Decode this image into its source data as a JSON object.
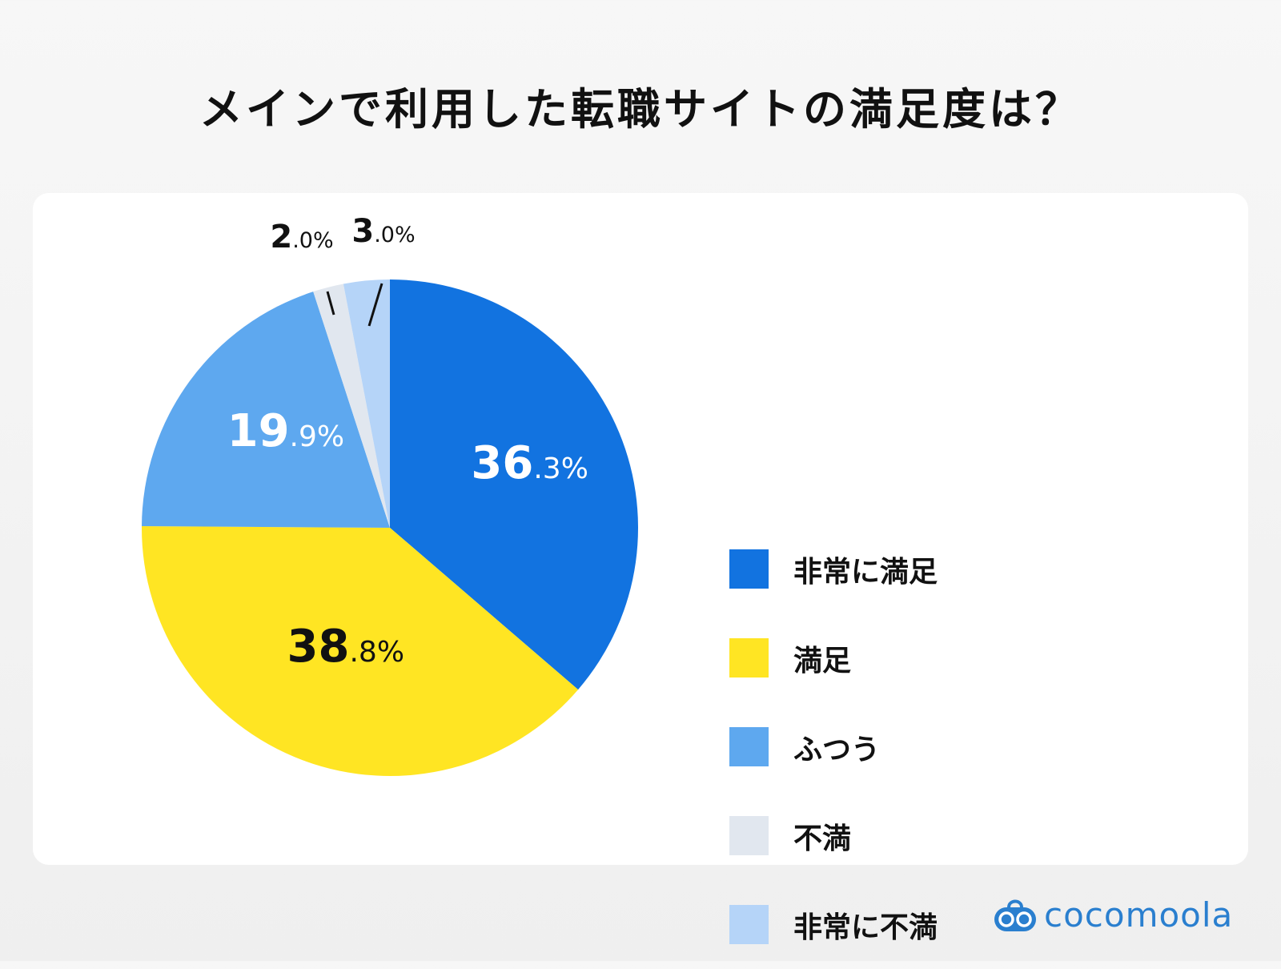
{
  "title": "メインで利用した転職サイトの満足度は？",
  "chart_data": {
    "type": "pie",
    "title": "メインで利用した転職サイトの満足度は？",
    "start_angle": "top",
    "direction": "clockwise",
    "legend_position": "right",
    "slices": [
      {
        "label": "非常に満足",
        "value": 36.3,
        "display_int": "36",
        "display_dec": ".3%",
        "color": "#1273e0",
        "text_color": "#ffffff"
      },
      {
        "label": "満足",
        "value": 38.8,
        "display_int": "38",
        "display_dec": ".8%",
        "color": "#ffe523",
        "text_color": "#111111"
      },
      {
        "label": "ふつう",
        "value": 19.9,
        "display_int": "19",
        "display_dec": ".9%",
        "color": "#5ea8ef",
        "text_color": "#ffffff"
      },
      {
        "label": "不満",
        "value": 2.0,
        "display_int": "2",
        "display_dec": ".0%",
        "color": "#e1e7ef",
        "text_color": "#111111"
      },
      {
        "label": "非常に不満",
        "value": 3.0,
        "display_int": "3",
        "display_dec": ".0%",
        "color": "#b5d4f8",
        "text_color": "#111111"
      }
    ]
  },
  "logo": {
    "text": "cocomoola",
    "color": "#2a7fcf"
  }
}
